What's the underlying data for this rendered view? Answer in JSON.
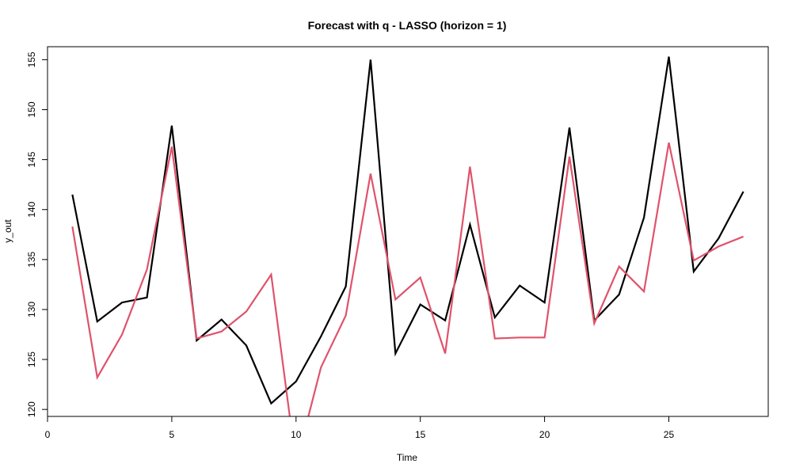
{
  "chart_data": {
    "type": "line",
    "title": "Forecast with q - LASSO (horizon = 1)",
    "xlabel": "Time",
    "ylabel": "y_out",
    "xlim": [
      0,
      29
    ],
    "ylim": [
      119.3,
      156.3
    ],
    "xticks": [
      0,
      5,
      10,
      15,
      20,
      25
    ],
    "yticks": [
      120,
      125,
      130,
      135,
      140,
      145,
      150,
      155
    ],
    "grid": false,
    "legend": "none",
    "x": [
      1,
      2,
      3,
      4,
      5,
      6,
      7,
      8,
      9,
      10,
      11,
      12,
      13,
      14,
      15,
      16,
      17,
      18,
      19,
      20,
      21,
      22,
      23,
      24,
      25,
      26,
      27,
      28
    ],
    "series": [
      {
        "color": "#000000",
        "values": [
          141.5,
          128.8,
          130.7,
          131.2,
          148.4,
          126.9,
          129.0,
          126.4,
          120.6,
          122.8,
          127.3,
          132.3,
          155.0,
          125.6,
          130.5,
          128.9,
          138.5,
          129.2,
          132.4,
          130.7,
          148.2,
          128.9,
          131.5,
          139.2,
          155.3,
          133.8,
          137.1,
          141.8
        ]
      },
      {
        "color": "#DF536B",
        "values": [
          138.3,
          123.2,
          127.5,
          134.0,
          146.3,
          127.1,
          127.8,
          129.8,
          133.5,
          114.5,
          124.2,
          129.4,
          143.6,
          131.0,
          133.2,
          125.6,
          144.3,
          127.1,
          127.2,
          127.2,
          145.3,
          128.6,
          134.3,
          131.8,
          146.7,
          134.9,
          136.3,
          137.3
        ]
      }
    ]
  }
}
